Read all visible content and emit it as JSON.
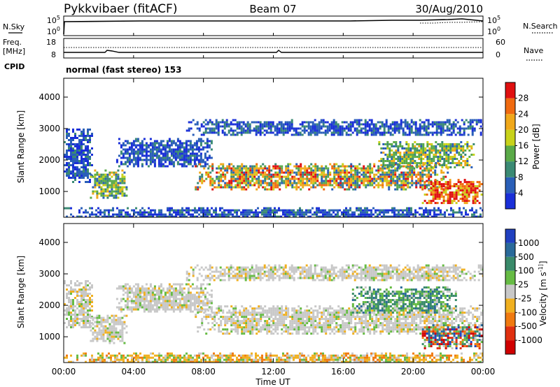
{
  "header": {
    "station": "Pykkvibaer (fitACF)",
    "beam": "Beam 07",
    "date": "30/Aug/2010"
  },
  "top_panel": {
    "left_label": "N.Sky",
    "left_ticks": [
      "10^5",
      "10^0"
    ],
    "right_label": "N.Search",
    "right_ticks": [
      "10^5",
      "10^0"
    ]
  },
  "freq_panel": {
    "left_label_1": "Freq.",
    "left_label_2": "[MHz]",
    "left_ticks": [
      "18",
      "8"
    ],
    "right_label": "Nave",
    "right_ticks": [
      "60",
      "0"
    ],
    "cpid_label": "CPID"
  },
  "mode_text": "normal (fast stereo) 153",
  "axes": {
    "ylabel": "Slant Range [km]",
    "xlabel": "Time UT",
    "y_ticks": [
      1000,
      2000,
      3000,
      4000
    ],
    "x_ticks": [
      "00:00",
      "04:00",
      "08:00",
      "12:00",
      "16:00",
      "20:00",
      "00:00"
    ]
  },
  "power_colorbar": {
    "label": "Power [dB]",
    "ticks": [
      "4",
      "8",
      "12",
      "16",
      "20",
      "24",
      "28"
    ],
    "colors": [
      "#1a2fd8",
      "#2a5fb8",
      "#3b8a74",
      "#5aaa48",
      "#c8d21a",
      "#f0a81a",
      "#f06a10",
      "#e01010"
    ]
  },
  "velocity_colorbar": {
    "label": "Velocity [m s^-1]",
    "ticks": [
      "1000",
      "500",
      "100",
      "25",
      "-25",
      "-100",
      "-500",
      "-1000"
    ],
    "colors": [
      "#2040c0",
      "#2a6a9a",
      "#3a8a6a",
      "#66bb44",
      "#c8c8c8",
      "#f0b020",
      "#f07a10",
      "#e03010",
      "#d00000"
    ]
  },
  "chart_data": [
    {
      "type": "heatmap",
      "name": "Power",
      "x_unit": "hours UT",
      "y_unit": "km",
      "xlim": [
        0,
        24
      ],
      "ylim": [
        180,
        4600
      ],
      "regions": [
        {
          "x": [
            0.0,
            1.6
          ],
          "y": [
            1300,
            3000
          ],
          "level": "low"
        },
        {
          "x": [
            1.5,
            3.6
          ],
          "y": [
            800,
            1700
          ],
          "level": "medium"
        },
        {
          "x": [
            3.0,
            8.5
          ],
          "y": [
            1800,
            2700
          ],
          "level": "low"
        },
        {
          "x": [
            7.0,
            24.0
          ],
          "y": [
            2800,
            3300
          ],
          "level": "low"
        },
        {
          "x": [
            7.5,
            22.0
          ],
          "y": [
            1100,
            1900
          ],
          "level": "high"
        },
        {
          "x": [
            18.0,
            23.5
          ],
          "y": [
            1800,
            2600
          ],
          "level": "medium"
        },
        {
          "x": [
            20.5,
            24.0
          ],
          "y": [
            650,
            1400
          ],
          "level": "very_high"
        },
        {
          "x": [
            0.0,
            24.0
          ],
          "y": [
            180,
            500
          ],
          "level": "low"
        }
      ]
    },
    {
      "type": "heatmap",
      "name": "Velocity",
      "x_unit": "hours UT",
      "y_unit": "km",
      "xlim": [
        0,
        24
      ],
      "ylim": [
        180,
        4600
      ],
      "regions": [
        {
          "x": [
            0.0,
            1.6
          ],
          "y": [
            1300,
            2800
          ],
          "level": "near_zero"
        },
        {
          "x": [
            1.5,
            3.6
          ],
          "y": [
            800,
            1700
          ],
          "level": "near_zero"
        },
        {
          "x": [
            3.0,
            8.5
          ],
          "y": [
            1800,
            2700
          ],
          "level": "near_zero"
        },
        {
          "x": [
            7.0,
            24.0
          ],
          "y": [
            2800,
            3300
          ],
          "level": "near_zero"
        },
        {
          "x": [
            7.5,
            24.0
          ],
          "y": [
            1100,
            2000
          ],
          "level": "near_zero"
        },
        {
          "x": [
            16.5,
            22.5
          ],
          "y": [
            1800,
            2600
          ],
          "level": "positive"
        },
        {
          "x": [
            20.5,
            24.0
          ],
          "y": [
            650,
            1400
          ],
          "level": "mixed"
        },
        {
          "x": [
            0.0,
            24.0
          ],
          "y": [
            180,
            500
          ],
          "level": "negative_small"
        }
      ]
    }
  ]
}
